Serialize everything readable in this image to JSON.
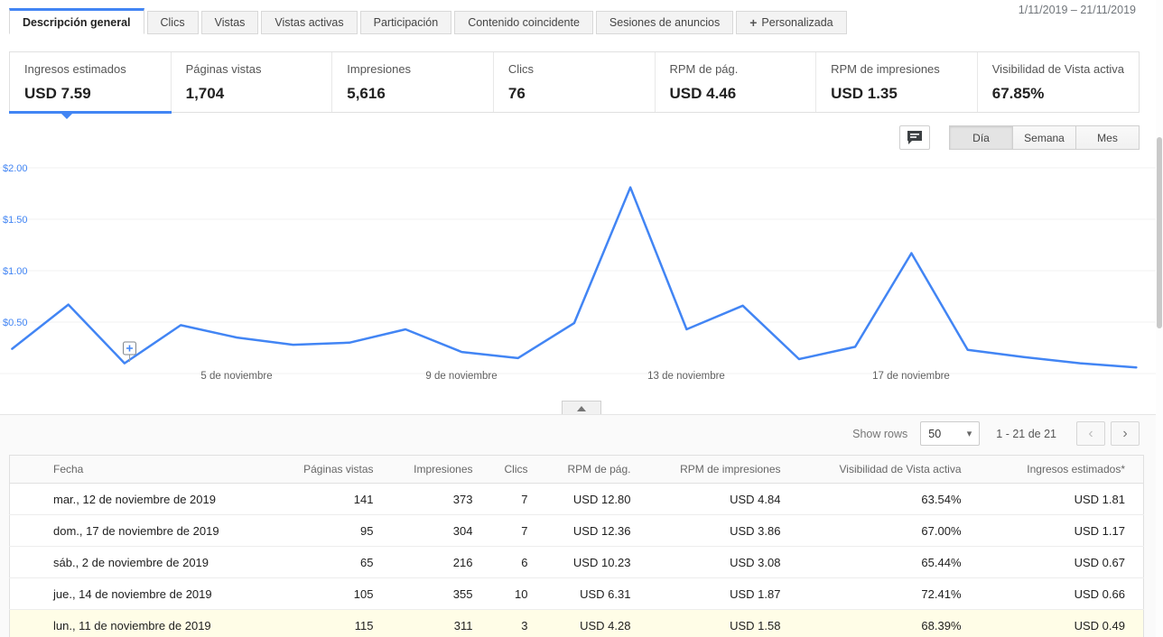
{
  "page": {
    "date_range": "1/11/2019 – 21/11/2019"
  },
  "tabs": [
    {
      "label": "Descripción general",
      "active": true
    },
    {
      "label": "Clics",
      "active": false
    },
    {
      "label": "Vistas",
      "active": false
    },
    {
      "label": "Vistas activas",
      "active": false
    },
    {
      "label": "Participación",
      "active": false
    },
    {
      "label": "Contenido coincidente",
      "active": false
    },
    {
      "label": "Sesiones de anuncios",
      "active": false
    },
    {
      "label": "Personalizada",
      "active": false,
      "icon": "plus"
    }
  ],
  "metrics": [
    {
      "label": "Ingresos estimados",
      "value": "USD 7.59",
      "selected": true
    },
    {
      "label": "Páginas vistas",
      "value": "1,704",
      "selected": false
    },
    {
      "label": "Impresiones",
      "value": "5,616",
      "selected": false
    },
    {
      "label": "Clics",
      "value": "76",
      "selected": false
    },
    {
      "label": "RPM de pág.",
      "value": "USD 4.46",
      "selected": false
    },
    {
      "label": "RPM de impresiones",
      "value": "USD 1.35",
      "selected": false
    },
    {
      "label": "Visibilidad de Vista activa",
      "value": "67.85%",
      "selected": false
    }
  ],
  "chart_controls": {
    "granularity": [
      {
        "label": "Día",
        "selected": true
      },
      {
        "label": "Semana",
        "selected": false
      },
      {
        "label": "Mes",
        "selected": false
      }
    ]
  },
  "chart_data": {
    "type": "line",
    "title": "Ingresos estimados",
    "unit": "USD",
    "x": [
      "1 de noviembre",
      "2 de noviembre",
      "3 de noviembre",
      "4 de noviembre",
      "5 de noviembre",
      "6 de noviembre",
      "7 de noviembre",
      "8 de noviembre",
      "9 de noviembre",
      "10 de noviembre",
      "11 de noviembre",
      "12 de noviembre",
      "13 de noviembre",
      "14 de noviembre",
      "15 de noviembre",
      "16 de noviembre",
      "17 de noviembre",
      "18 de noviembre",
      "19 de noviembre",
      "20 de noviembre",
      "21 de noviembre"
    ],
    "values": [
      0.24,
      0.67,
      0.1,
      0.47,
      0.35,
      0.28,
      0.3,
      0.43,
      0.21,
      0.15,
      0.49,
      1.81,
      0.43,
      0.66,
      0.14,
      0.26,
      1.17,
      0.23,
      0.16,
      0.1,
      0.06
    ],
    "ylim": [
      0,
      2.0
    ],
    "y_ticks": [
      "$2.00",
      "$1.50",
      "$1.00",
      "$0.50"
    ],
    "x_axis_ticks": [
      "5 de noviembre",
      "9 de noviembre",
      "13 de noviembre",
      "17 de noviembre"
    ],
    "line_color": "#4285f4",
    "grid": true,
    "annotation": {
      "day": "3 de noviembre",
      "icon": "plus"
    }
  },
  "table_controls": {
    "show_rows_label": "Show rows",
    "rows_per_page": "50",
    "pagination": "1 - 21 de 21"
  },
  "table": {
    "columns": [
      "Fecha",
      "Páginas vistas",
      "Impresiones",
      "Clics",
      "RPM de pág.",
      "RPM de impresiones",
      "Visibilidad de Vista activa",
      "Ingresos estimados*"
    ],
    "rows": [
      {
        "fecha": "mar., 12 de noviembre de 2019",
        "paginas_vistas": "141",
        "impresiones": "373",
        "clics": "7",
        "rpm_pagina": "USD 12.80",
        "rpm_impresiones": "USD 4.84",
        "visibilidad": "63.54%",
        "ingresos": "USD 1.81",
        "highlighted": false
      },
      {
        "fecha": "dom., 17 de noviembre de 2019",
        "paginas_vistas": "95",
        "impresiones": "304",
        "clics": "7",
        "rpm_pagina": "USD 12.36",
        "rpm_impresiones": "USD 3.86",
        "visibilidad": "67.00%",
        "ingresos": "USD 1.17",
        "highlighted": false
      },
      {
        "fecha": "sáb., 2 de noviembre de 2019",
        "paginas_vistas": "65",
        "impresiones": "216",
        "clics": "6",
        "rpm_pagina": "USD 10.23",
        "rpm_impresiones": "USD 3.08",
        "visibilidad": "65.44%",
        "ingresos": "USD 0.67",
        "highlighted": false
      },
      {
        "fecha": "jue., 14 de noviembre de 2019",
        "paginas_vistas": "105",
        "impresiones": "355",
        "clics": "10",
        "rpm_pagina": "USD 6.31",
        "rpm_impresiones": "USD 1.87",
        "visibilidad": "72.41%",
        "ingresos": "USD 0.66",
        "highlighted": false
      },
      {
        "fecha": "lun., 11 de noviembre de 2019",
        "paginas_vistas": "115",
        "impresiones": "311",
        "clics": "3",
        "rpm_pagina": "USD 4.28",
        "rpm_impresiones": "USD 1.58",
        "visibilidad": "68.39%",
        "ingresos": "USD 0.49",
        "highlighted": true
      }
    ]
  },
  "icons": {
    "plus": "+",
    "dropdown_caret": "▾",
    "prev_chevron": "‹",
    "next_chevron": "›",
    "comment": "speech-bubble",
    "collapse": "caret-up"
  },
  "colors": {
    "accent_blue": "#4285f4",
    "highlight_row": "#fffde7"
  }
}
